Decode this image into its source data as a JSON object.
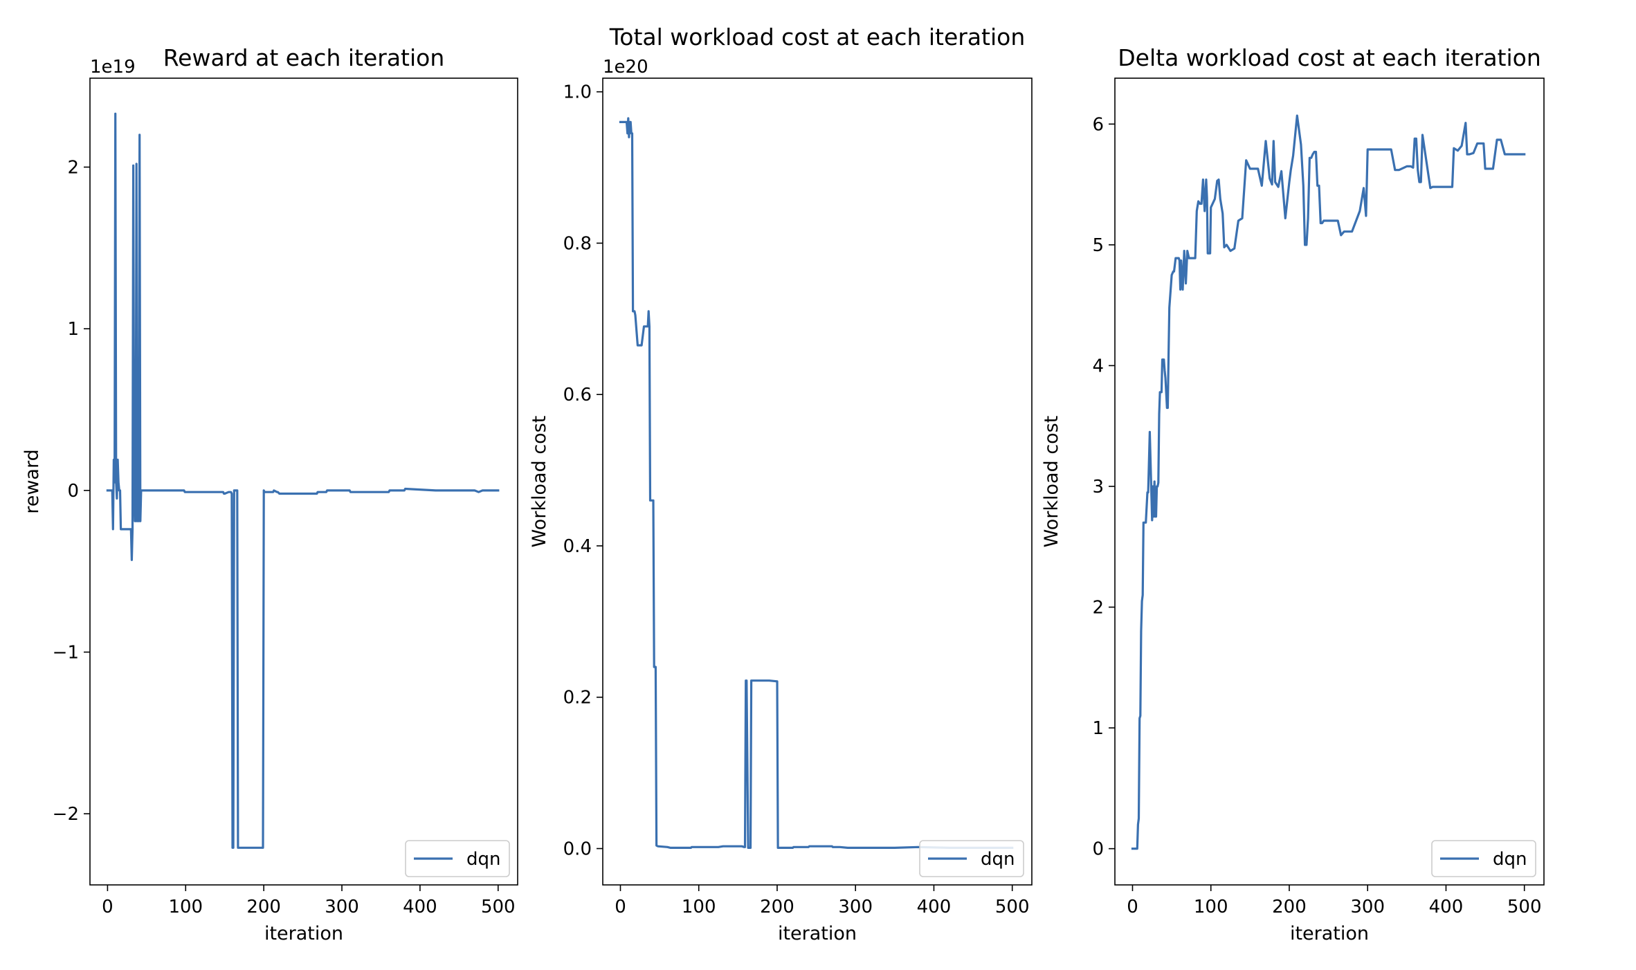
{
  "line_color": "#3a70b0",
  "chart_data": [
    {
      "type": "line",
      "title": "Reward at each iteration",
      "xlabel": "iteration",
      "ylabel": "reward",
      "offset_label": "1e19",
      "xlim": [
        -22.5,
        525
      ],
      "ylim": [
        -2.44,
        2.55
      ],
      "xticks": [
        0,
        100,
        200,
        300,
        400,
        500
      ],
      "xtick_labels": [
        "0",
        "100",
        "200",
        "300",
        "400",
        "500"
      ],
      "yticks": [
        -2,
        -1,
        0,
        1,
        2
      ],
      "ytick_labels": [
        "−2",
        "−1",
        "0",
        "1",
        "2"
      ],
      "grid": false,
      "legend_position": "lower right",
      "series": [
        {
          "name": "dqn",
          "x": [
            0,
            6,
            7,
            8,
            9,
            10,
            11,
            12,
            13,
            14,
            15,
            16,
            17,
            19,
            20,
            21,
            22,
            25,
            30,
            31,
            32,
            33,
            34,
            35,
            36,
            37,
            38,
            39,
            40,
            41,
            42,
            43,
            44,
            45,
            46,
            50,
            60,
            61,
            70,
            98,
            99,
            130,
            131,
            148,
            149,
            150,
            155,
            158,
            159,
            160,
            161,
            162,
            163,
            164,
            165,
            166,
            167,
            168,
            185,
            199,
            200,
            201,
            212,
            213,
            217,
            218,
            220,
            235,
            236,
            268,
            269,
            280,
            281,
            310,
            311,
            335,
            360,
            361,
            380,
            381,
            420,
            430,
            450,
            452,
            470,
            475,
            480,
            490,
            500
          ],
          "y": [
            0,
            0,
            -0.24,
            0.19,
            0.05,
            2.33,
            0.05,
            -0.05,
            0.19,
            0.05,
            0,
            0,
            -0.24,
            -0.24,
            -0.24,
            -0.24,
            -0.24,
            -0.24,
            -0.24,
            -0.43,
            -0.24,
            2.01,
            0.05,
            -0.19,
            -0.19,
            2.02,
            -0.19,
            -0.19,
            -0.19,
            2.2,
            -0.19,
            0,
            0,
            0,
            0,
            0,
            0,
            0,
            0,
            0,
            -0.01,
            -0.01,
            -0.01,
            -0.01,
            -0.02,
            -0.02,
            -0.01,
            -0.01,
            -0.02,
            -2.21,
            -2.21,
            0,
            0,
            0,
            0,
            0,
            -2.21,
            -2.21,
            -2.21,
            -2.21,
            0,
            -0.01,
            -0.01,
            0,
            -0.01,
            -0.01,
            -0.02,
            -0.02,
            -0.02,
            -0.02,
            -0.01,
            -0.01,
            0,
            0,
            -0.01,
            -0.01,
            -0.01,
            0,
            0,
            0.01,
            0,
            0,
            0,
            0,
            0,
            -0.01,
            0,
            0,
            0
          ]
        }
      ]
    },
    {
      "type": "line",
      "title": "Total workload cost at each iteration",
      "xlabel": "iteration",
      "ylabel": "Workload cost",
      "offset_label": "1e20",
      "xlim": [
        -22.5,
        525
      ],
      "ylim": [
        -0.048,
        1.018
      ],
      "xticks": [
        0,
        100,
        200,
        300,
        400,
        500
      ],
      "xtick_labels": [
        "0",
        "100",
        "200",
        "300",
        "400",
        "500"
      ],
      "yticks": [
        0,
        0.2,
        0.4,
        0.6,
        0.8,
        1.0
      ],
      "ytick_labels": [
        "0.0",
        "0.2",
        "0.4",
        "0.6",
        "0.8",
        "1.0"
      ],
      "grid": false,
      "legend_position": "lower right",
      "series": [
        {
          "name": "dqn",
          "x": [
            0,
            5,
            6,
            7,
            8,
            9,
            10,
            11,
            12,
            13,
            14,
            15,
            16,
            18,
            19,
            22,
            23,
            26,
            27,
            30,
            31,
            32,
            33,
            34,
            35,
            36,
            37,
            38,
            39,
            40,
            42,
            43,
            44,
            45,
            46,
            48,
            60,
            64,
            65,
            90,
            91,
            125,
            131,
            140,
            155,
            158,
            159,
            160,
            161,
            163,
            164,
            165,
            166,
            167,
            168,
            190,
            200,
            201,
            203,
            215,
            220,
            221,
            240,
            241,
            270,
            271,
            280,
            290,
            300,
            320,
            350,
            380,
            420,
            500
          ],
          "y": [
            0.96,
            0.96,
            0.96,
            0.96,
            0.96,
            0.945,
            0.965,
            0.94,
            0.96,
            0.96,
            0.945,
            0.945,
            0.71,
            0.71,
            0.705,
            0.665,
            0.665,
            0.665,
            0.665,
            0.69,
            0.69,
            0.69,
            0.69,
            0.69,
            0.69,
            0.71,
            0.69,
            0.46,
            0.46,
            0.46,
            0.46,
            0.24,
            0.24,
            0.24,
            0.004,
            0.003,
            0.002,
            0.001,
            0.001,
            0.001,
            0.002,
            0.002,
            0.003,
            0.003,
            0.003,
            0.002,
            0.002,
            0.222,
            0.222,
            0.001,
            0.001,
            0.001,
            0.001,
            0.222,
            0.222,
            0.222,
            0.221,
            0.001,
            0.001,
            0.001,
            0.001,
            0.002,
            0.002,
            0.003,
            0.003,
            0.002,
            0.002,
            0.001,
            0.001,
            0.001,
            0.001,
            0.002,
            0.001,
            0.001
          ]
        }
      ]
    },
    {
      "type": "line",
      "title": "Delta workload cost at each iteration",
      "xlabel": "iteration",
      "ylabel": "Workload cost",
      "offset_label": "",
      "xlim": [
        -22.5,
        525
      ],
      "ylim": [
        -0.3,
        6.38
      ],
      "xticks": [
        0,
        100,
        200,
        300,
        400,
        500
      ],
      "xtick_labels": [
        "0",
        "100",
        "200",
        "300",
        "400",
        "500"
      ],
      "yticks": [
        0,
        1,
        2,
        3,
        4,
        5,
        6
      ],
      "ytick_labels": [
        "0",
        "1",
        "2",
        "3",
        "4",
        "5",
        "6"
      ],
      "grid": false,
      "legend_position": "lower right",
      "series": [
        {
          "name": "dqn",
          "x": [
            0,
            6,
            7,
            8,
            9,
            10,
            11,
            12,
            13,
            14,
            15,
            16,
            17,
            19,
            20,
            22,
            24,
            25,
            26,
            27,
            28,
            29,
            30,
            31,
            32,
            33,
            34,
            35,
            36,
            37,
            38,
            39,
            40,
            41,
            42,
            44,
            45,
            46,
            47,
            50,
            52,
            53,
            55,
            57,
            58,
            59,
            60,
            61,
            62,
            64,
            66,
            68,
            70,
            72,
            74,
            75,
            76,
            77,
            78,
            80,
            82,
            84,
            86,
            88,
            90,
            92,
            94,
            95,
            96,
            98,
            99,
            100,
            105,
            108,
            110,
            112,
            115,
            117,
            120,
            125,
            130,
            135,
            140,
            145,
            150,
            160,
            165,
            170,
            175,
            178,
            180,
            182,
            186,
            190,
            195,
            200,
            202,
            205,
            210,
            215,
            218,
            220,
            222,
            224,
            226,
            228,
            230,
            232,
            234,
            236,
            238,
            240,
            242,
            244,
            246,
            248,
            252,
            255,
            258,
            262,
            266,
            270,
            275,
            280,
            290,
            295,
            298,
            300,
            305,
            310,
            320,
            330,
            335,
            340,
            350,
            355,
            358,
            360,
            362,
            364,
            366,
            368,
            370,
            380,
            383,
            390,
            400,
            405,
            408,
            410,
            415,
            420,
            425,
            427,
            428,
            430,
            435,
            440,
            448,
            450,
            452,
            455,
            460,
            465,
            468,
            470,
            475,
            480,
            485,
            490,
            495,
            500
          ],
          "y": [
            0,
            0,
            0.2,
            0.25,
            1.08,
            1.1,
            1.8,
            2.05,
            2.1,
            2.7,
            2.7,
            2.7,
            2.7,
            2.95,
            2.95,
            3.45,
            2.95,
            2.72,
            3.0,
            2.75,
            3.04,
            2.75,
            2.75,
            3.0,
            3.0,
            3.03,
            3.6,
            3.78,
            3.78,
            3.78,
            4.05,
            4.05,
            4.05,
            3.96,
            3.9,
            3.65,
            3.65,
            4.1,
            4.48,
            4.75,
            4.78,
            4.78,
            4.89,
            4.89,
            4.89,
            4.89,
            4.87,
            4.63,
            4.87,
            4.63,
            4.95,
            4.68,
            4.95,
            4.89,
            4.89,
            4.89,
            4.89,
            4.89,
            4.89,
            4.89,
            5.28,
            5.36,
            5.34,
            5.34,
            5.54,
            5.28,
            5.54,
            5.39,
            4.93,
            4.93,
            4.93,
            5.31,
            5.38,
            5.53,
            5.54,
            5.38,
            5.26,
            4.98,
            5.0,
            4.95,
            4.97,
            5.2,
            5.22,
            5.7,
            5.63,
            5.63,
            5.49,
            5.86,
            5.55,
            5.5,
            5.86,
            5.52,
            5.48,
            5.61,
            5.22,
            5.52,
            5.62,
            5.74,
            6.07,
            5.83,
            5.49,
            5.0,
            5.0,
            5.22,
            5.72,
            5.72,
            5.75,
            5.77,
            5.77,
            5.49,
            5.49,
            5.18,
            5.18,
            5.2,
            5.2,
            5.2,
            5.2,
            5.2,
            5.2,
            5.2,
            5.08,
            5.11,
            5.11,
            5.11,
            5.28,
            5.47,
            5.24,
            5.79,
            5.79,
            5.79,
            5.79,
            5.79,
            5.62,
            5.62,
            5.65,
            5.65,
            5.64,
            5.88,
            5.88,
            5.62,
            5.52,
            5.52,
            5.91,
            5.47,
            5.48,
            5.48,
            5.48,
            5.48,
            5.48,
            5.8,
            5.78,
            5.82,
            6.01,
            5.75,
            5.75,
            5.75,
            5.76,
            5.84,
            5.84,
            5.63,
            5.63,
            5.63,
            5.63,
            5.87,
            5.87,
            5.87,
            5.75,
            5.75,
            5.75,
            5.75,
            5.75,
            5.75
          ]
        }
      ]
    }
  ]
}
